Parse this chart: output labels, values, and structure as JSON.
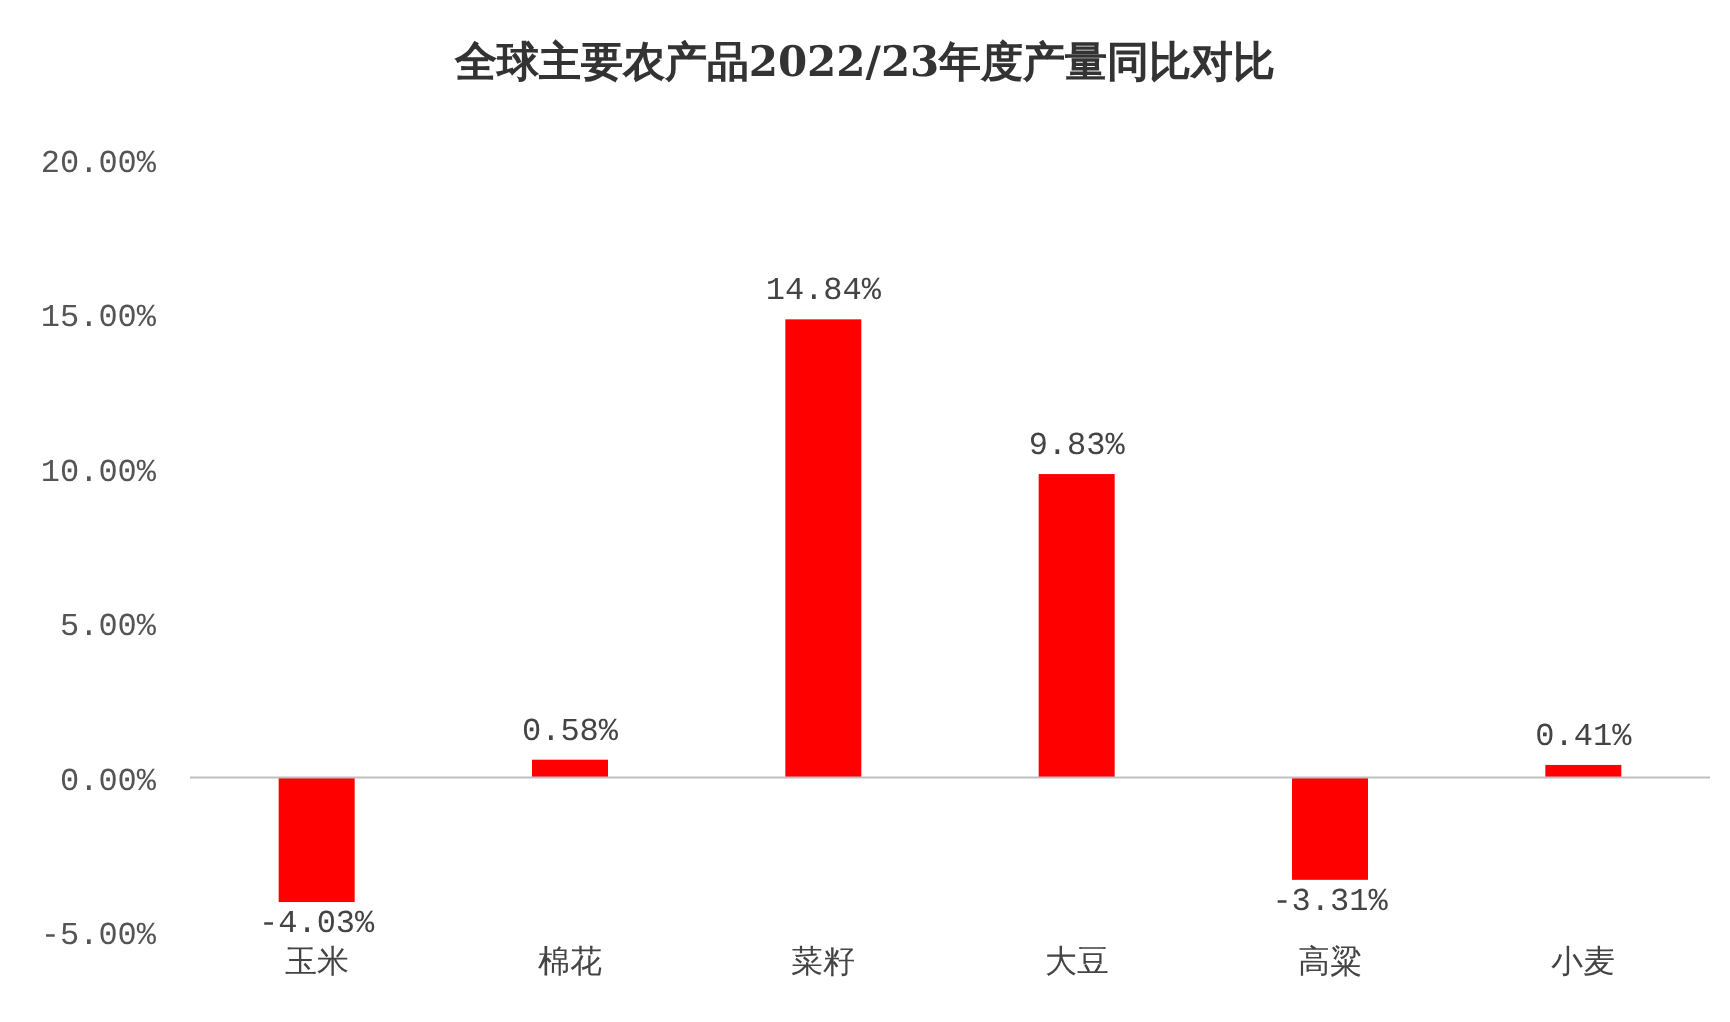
{
  "chart_data": {
    "type": "bar",
    "title": "全球主要农产品2022/23年度产量同比对比",
    "categories": [
      "玉米",
      "棉花",
      "菜籽",
      "大豆",
      "高粱",
      "小麦"
    ],
    "values": [
      -4.03,
      0.58,
      14.84,
      9.83,
      -3.31,
      0.41
    ],
    "value_labels": [
      "-4.03%",
      "0.58%",
      "14.84%",
      "9.83%",
      "-3.31%",
      "0.41%"
    ],
    "color": "#ff0000",
    "ylim": [
      -5,
      20
    ],
    "yticks": [
      {
        "value": -5,
        "label": "-5.00%"
      },
      {
        "value": 0,
        "label": "0.00%"
      },
      {
        "value": 5,
        "label": "5.00%"
      },
      {
        "value": 10,
        "label": "10.00%"
      },
      {
        "value": 15,
        "label": "15.00%"
      },
      {
        "value": 20,
        "label": "20.00%"
      }
    ],
    "tick_labels": "xy"
  }
}
